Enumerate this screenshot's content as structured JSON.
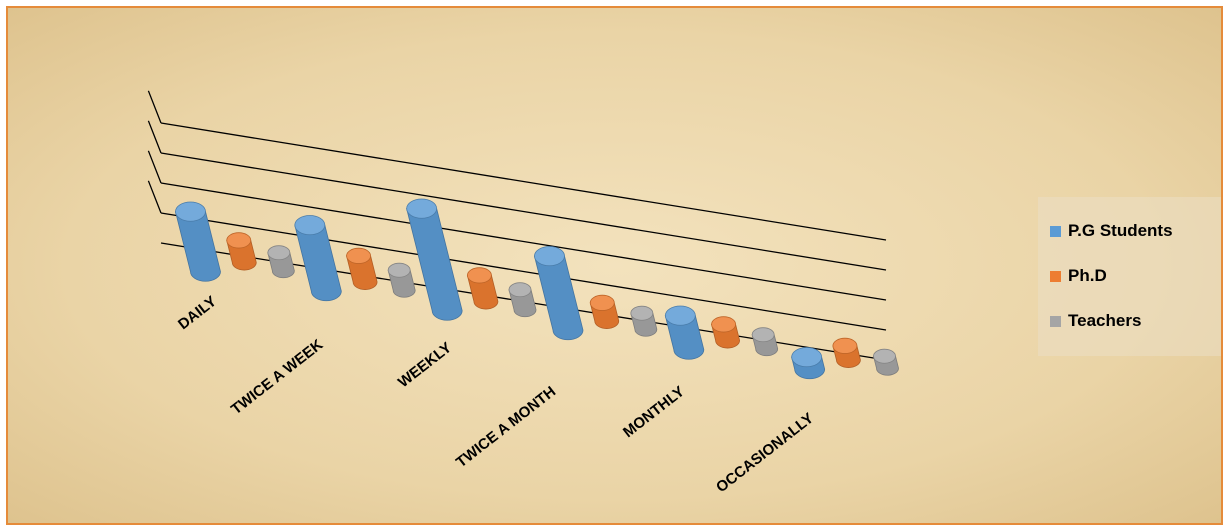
{
  "chart_data": {
    "type": "bar",
    "style": "3d-cylinder",
    "categories": [
      "DAILY",
      "TWICE A WEEK",
      "WEEKLY",
      "TWICE A MONTH",
      "MONTHLY",
      "OCCASIONALLY"
    ],
    "series": [
      {
        "name": "P.G Students",
        "color": "#5b9bd5",
        "values": [
          30,
          33,
          51,
          37,
          17,
          6
        ]
      },
      {
        "name": "Ph.D",
        "color": "#ed7d31",
        "values": [
          11,
          13,
          13,
          9,
          8,
          7
        ]
      },
      {
        "name": "Teachers",
        "color": "#a5a5a5",
        "values": [
          9,
          10,
          10,
          8,
          7,
          6
        ]
      }
    ],
    "ylim": [
      0,
      60
    ],
    "grid": true,
    "legend_position": "right"
  }
}
